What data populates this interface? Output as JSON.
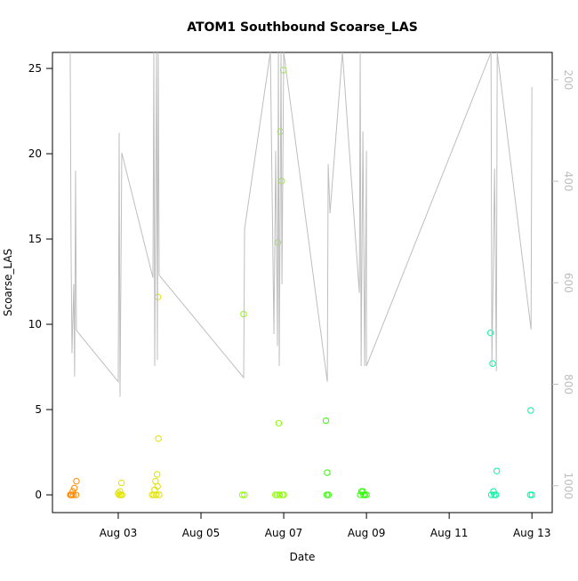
{
  "chart_data": {
    "type": "scatter",
    "title": "ATOM1 Southbound Scoarse_LAS",
    "x_label": "Date",
    "y_label": "Scoarse_LAS",
    "xlim": [
      1.41,
      13.49
    ],
    "xticks": [
      {
        "value": 3,
        "label": "Aug 03"
      },
      {
        "value": 5,
        "label": "Aug 05"
      },
      {
        "value": 7,
        "label": "Aug 07"
      },
      {
        "value": 9,
        "label": "Aug 09"
      },
      {
        "value": 11,
        "label": "Aug 11"
      },
      {
        "value": 13,
        "label": "Aug 13"
      }
    ],
    "ylim": [
      -1.04,
      25.94
    ],
    "yticks": [
      0,
      5,
      10,
      15,
      20,
      25
    ],
    "y2lim": [
      1053,
      146
    ],
    "y2ticks": [
      200,
      400,
      600,
      800,
      1000
    ],
    "series": [
      {
        "color": "#ff8c00",
        "x": [
          1.84,
          1.86,
          1.88,
          1.9,
          1.92,
          1.94,
          1.99,
          1.98
        ],
        "values": [
          0,
          0,
          0,
          0.2,
          0,
          0.4,
          0.8,
          0
        ]
      },
      {
        "color": "#e0e000",
        "x": [
          3.0,
          3.02,
          3.04,
          3.06,
          3.08,
          3.09,
          3.82,
          3.86,
          3.88,
          3.9,
          3.92,
          3.94,
          3.97,
          3.96,
          3.99,
          3.95
        ],
        "values": [
          0.1,
          0,
          0.2,
          0,
          0.7,
          0,
          0,
          0,
          0.3,
          0.8,
          0,
          1.2,
          3.3,
          11.6,
          0,
          0.5
        ]
      },
      {
        "color": "#8cff00",
        "x": [
          6.03,
          6.0,
          6.05,
          6.8,
          6.84,
          6.86,
          6.88,
          6.9,
          6.92,
          6.95,
          6.99,
          6.97,
          7.0
        ],
        "values": [
          10.6,
          0,
          0,
          0,
          0,
          14.8,
          4.2,
          0,
          21.3,
          18.4,
          24.9,
          0,
          0
        ]
      },
      {
        "color": "#2eff00",
        "x": [
          8.02,
          8.05,
          8.04,
          8.08,
          8.85,
          8.88,
          8.91,
          8.93,
          8.96,
          9.0
        ],
        "values": [
          4.35,
          1.3,
          0,
          0,
          0,
          0.2,
          0.2,
          0,
          0,
          0
        ]
      },
      {
        "color": "#00f5a0",
        "x": [
          12.0,
          12.05,
          12.07,
          12.02,
          12.09,
          12.15,
          12.13,
          12.97,
          12.96,
          13.0
        ],
        "values": [
          9.5,
          7.7,
          0.2,
          0,
          0,
          1.4,
          0,
          4.95,
          0,
          0
        ]
      },
      {
        "color": "#bebebe",
        "axis": "y2",
        "x": [
          1.839,
          1.86,
          1.882,
          1.925,
          1.946,
          1.968,
          1.989,
          3.0,
          3.022,
          3.043,
          3.086,
          3.839,
          3.86,
          3.882,
          3.925,
          3.946,
          3.968,
          3.989,
          6.032,
          6.054,
          6.677,
          6.763,
          6.806,
          6.849,
          6.871,
          6.892,
          6.935,
          6.957,
          7.0,
          8.054,
          8.075,
          8.118,
          8.419,
          8.828,
          8.849,
          8.871,
          8.914,
          8.957,
          9.0,
          9.0,
          12.011,
          12.032,
          12.097,
          12.14,
          12.161,
          12.978,
          13.0
        ],
        "values": [
          146,
          536,
          739,
          603,
          785,
          379,
          694,
          795,
          305,
          825,
          344,
          590,
          146,
          764,
          146,
          752,
          146,
          585,
          787,
          494,
          146,
          701,
          340,
          725,
          146,
          764,
          146,
          603,
          146,
          795,
          366,
          463,
          146,
          620,
          146,
          764,
          302,
          764,
          340,
          764,
          146,
          764,
          375,
          774,
          146,
          692,
          214
        ]
      }
    ]
  }
}
